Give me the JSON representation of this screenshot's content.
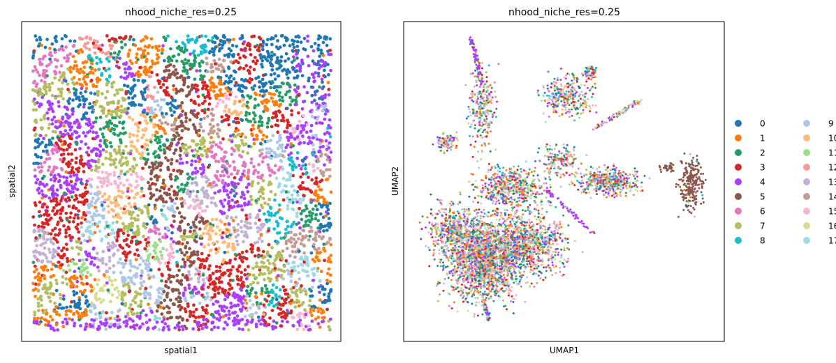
{
  "chart_data": [
    {
      "type": "scatter",
      "title": "nhood_niche_res=0.25",
      "xlabel": "spatial1",
      "ylabel": "spatial2",
      "ticks": false,
      "grid": false
    },
    {
      "type": "scatter",
      "title": "nhood_niche_res=0.25",
      "xlabel": "UMAP1",
      "ylabel": "UMAP2",
      "ticks": false,
      "grid": false
    }
  ],
  "legend": {
    "placement": "right",
    "columns": 2,
    "entries": [
      {
        "label": "0",
        "color": "#1f77b4"
      },
      {
        "label": "1",
        "color": "#ff7f0e"
      },
      {
        "label": "2",
        "color": "#279e68"
      },
      {
        "label": "3",
        "color": "#d62728"
      },
      {
        "label": "4",
        "color": "#aa40fc"
      },
      {
        "label": "5",
        "color": "#8c564b"
      },
      {
        "label": "6",
        "color": "#e377c2"
      },
      {
        "label": "7",
        "color": "#b5bd61"
      },
      {
        "label": "8",
        "color": "#17becf"
      },
      {
        "label": "9",
        "color": "#aec7e8"
      },
      {
        "label": "10",
        "color": "#ffbb78"
      },
      {
        "label": "11",
        "color": "#98df8a"
      },
      {
        "label": "12",
        "color": "#ff9896"
      },
      {
        "label": "13",
        "color": "#c5b0d5"
      },
      {
        "label": "14",
        "color": "#c49c94"
      },
      {
        "label": "15",
        "color": "#f7b6d2"
      },
      {
        "label": "16",
        "color": "#dbdb8d"
      },
      {
        "label": "17",
        "color": "#9edae5"
      }
    ]
  }
}
